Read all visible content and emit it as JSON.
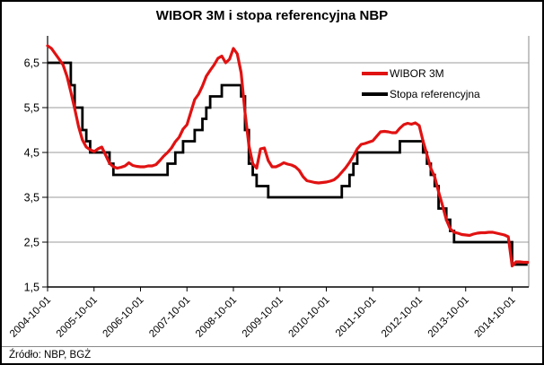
{
  "title": "WIBOR 3M i stopa referencyjna NBP",
  "source_note": "Źródło: NBP, BGŻ",
  "legend": [
    {
      "label": "WIBOR 3M",
      "color": "#e11212"
    },
    {
      "label": "Stopa referencyjna",
      "color": "#000000"
    }
  ],
  "colors": {
    "wibor_line": "#e11212",
    "reference_line": "#000000",
    "gridline": "#9b9b9b",
    "axis": "#000000",
    "plot_right_border": "#8a8a8a",
    "background": "#ffffff",
    "text": "#000000"
  },
  "chart_data": {
    "type": "line",
    "title": "WIBOR 3M i stopa referencyjna NBP",
    "xlabel": "",
    "ylabel": "",
    "x_range": [
      "2004-10",
      "2015-02"
    ],
    "ylim": [
      1.5,
      7.1
    ],
    "y_tick_values": [
      6.5,
      5.5,
      4.5,
      3.5,
      2.5,
      1.5
    ],
    "y_tick_labels": [
      "6,5",
      "5,5",
      "4,5",
      "3,5",
      "2,5",
      "1,5"
    ],
    "x_tick_labels": [
      "2004-10-01",
      "2005-10-01",
      "2006-10-01",
      "2007-10-01",
      "2008-10-01",
      "2009-10-01",
      "2010-10-01",
      "2011-10-01",
      "2012-10-01",
      "2013-10-01",
      "2014-10-01"
    ],
    "grid": true,
    "legend_position": "top-right",
    "series": [
      {
        "name": "WIBOR 3M",
        "color": "#e11212",
        "kind": "monthly",
        "start": "2004-10",
        "values": [
          6.88,
          6.82,
          6.7,
          6.58,
          6.45,
          6.2,
          5.85,
          5.48,
          5.08,
          4.78,
          4.62,
          4.56,
          4.52,
          4.58,
          4.62,
          4.44,
          4.26,
          4.18,
          4.15,
          4.17,
          4.2,
          4.27,
          4.21,
          4.19,
          4.18,
          4.18,
          4.2,
          4.2,
          4.23,
          4.32,
          4.42,
          4.5,
          4.6,
          4.74,
          4.84,
          5.02,
          5.12,
          5.4,
          5.68,
          5.8,
          5.98,
          6.2,
          6.33,
          6.45,
          6.6,
          6.65,
          6.5,
          6.58,
          6.82,
          6.7,
          6.28,
          5.4,
          4.65,
          4.25,
          4.15,
          4.58,
          4.6,
          4.32,
          4.18,
          4.18,
          4.22,
          4.27,
          4.24,
          4.22,
          4.18,
          4.1,
          3.96,
          3.87,
          3.85,
          3.83,
          3.82,
          3.83,
          3.84,
          3.86,
          3.89,
          3.96,
          4.06,
          4.16,
          4.28,
          4.42,
          4.58,
          4.68,
          4.7,
          4.73,
          4.76,
          4.86,
          4.96,
          4.97,
          4.96,
          4.94,
          4.94,
          5.04,
          5.12,
          5.15,
          5.13,
          5.16,
          5.1,
          4.75,
          4.45,
          4.15,
          3.95,
          3.62,
          3.32,
          3.0,
          2.8,
          2.72,
          2.7,
          2.67,
          2.66,
          2.65,
          2.68,
          2.7,
          2.71,
          2.71,
          2.72,
          2.72,
          2.7,
          2.68,
          2.66,
          2.62,
          1.97,
          2.06,
          2.06,
          2.05,
          2.05
        ]
      },
      {
        "name": "Stopa referencyjna",
        "color": "#000000",
        "kind": "step",
        "end": "2015-02",
        "changes": [
          [
            "2004-10",
            6.5
          ],
          [
            "2005-04",
            6.0
          ],
          [
            "2005-05",
            5.5
          ],
          [
            "2005-07",
            5.0
          ],
          [
            "2005-08",
            4.75
          ],
          [
            "2005-09",
            4.5
          ],
          [
            "2006-02",
            4.25
          ],
          [
            "2006-03",
            4.0
          ],
          [
            "2007-05",
            4.25
          ],
          [
            "2007-07",
            4.5
          ],
          [
            "2007-09",
            4.75
          ],
          [
            "2007-12",
            5.0
          ],
          [
            "2008-02",
            5.25
          ],
          [
            "2008-03",
            5.5
          ],
          [
            "2008-04",
            5.75
          ],
          [
            "2008-07",
            6.0
          ],
          [
            "2008-12",
            5.75
          ],
          [
            "2009-01",
            5.0
          ],
          [
            "2009-02",
            4.25
          ],
          [
            "2009-03",
            4.0
          ],
          [
            "2009-04",
            3.75
          ],
          [
            "2009-07",
            3.5
          ],
          [
            "2011-02",
            3.75
          ],
          [
            "2011-04",
            4.0
          ],
          [
            "2011-05",
            4.25
          ],
          [
            "2011-06",
            4.5
          ],
          [
            "2012-05",
            4.75
          ],
          [
            "2012-11",
            4.5
          ],
          [
            "2012-12",
            4.25
          ],
          [
            "2013-01",
            4.0
          ],
          [
            "2013-02",
            3.75
          ],
          [
            "2013-03",
            3.25
          ],
          [
            "2013-05",
            3.0
          ],
          [
            "2013-06",
            2.75
          ],
          [
            "2013-07",
            2.5
          ],
          [
            "2014-10",
            2.0
          ]
        ]
      }
    ]
  }
}
